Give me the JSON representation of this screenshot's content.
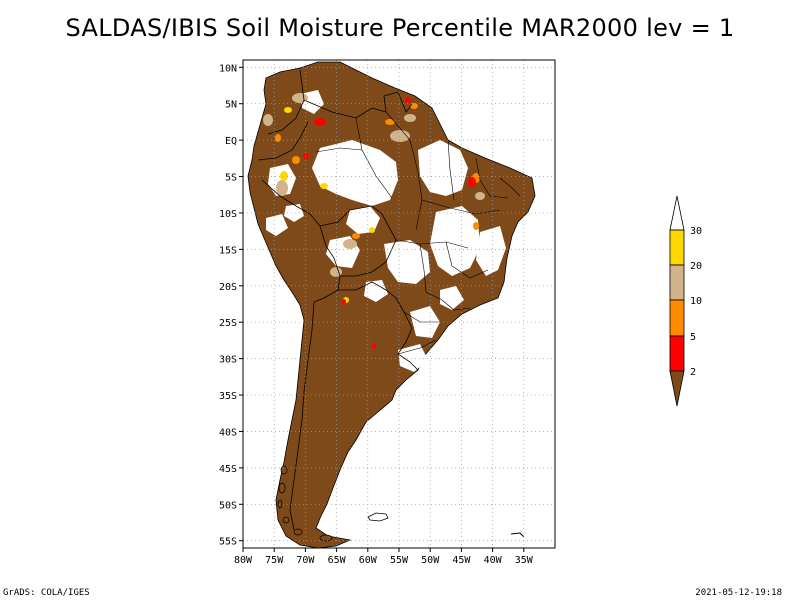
{
  "title": "SALDAS/IBIS Soil Moisture Percentile MAR2000 lev = 1",
  "footer": {
    "left": "GrADS: COLA/IGES",
    "right": "2021-05-12-19:18"
  },
  "map": {
    "lon_range": [
      -80,
      -30
    ],
    "lat_range": [
      -56,
      11
    ],
    "lon_ticks": [
      "80W",
      "75W",
      "70W",
      "65W",
      "60W",
      "55W",
      "50W",
      "45W",
      "40W",
      "35W"
    ],
    "lat_ticks": [
      "10N",
      "5N",
      "EQ",
      "5S",
      "10S",
      "15S",
      "20S",
      "25S",
      "30S",
      "35S",
      "40S",
      "45S",
      "50S",
      "55S"
    ],
    "grid": true,
    "land_color": "#7f4a1a"
  },
  "legend": {
    "placement": "right",
    "levels": [
      "2",
      "5",
      "10",
      "20",
      "30"
    ],
    "colors": {
      "below_2": "#7f4a1a",
      "2_5": "#ff0000",
      "5_10": "#ff8c00",
      "10_20": "#d2b48c",
      "20_30": "#ffd700",
      "above_30": "#ffffff"
    }
  }
}
